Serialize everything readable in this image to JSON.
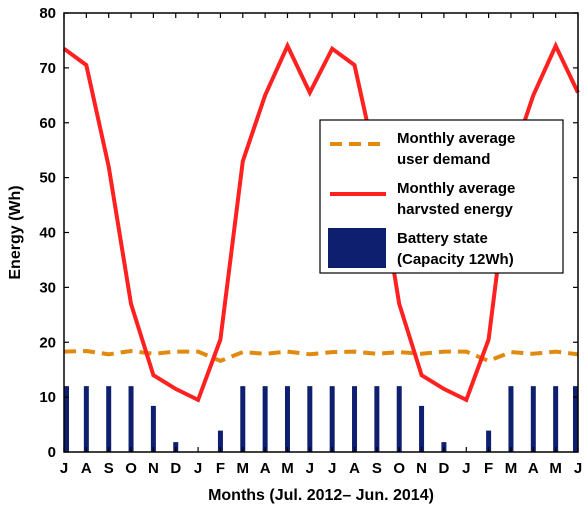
{
  "chart_data": {
    "type": "bar+line",
    "xlabel": "Months (Jul. 2012– Jun. 2014)",
    "ylabel": "Energy (Wh)",
    "ylim": [
      0,
      80
    ],
    "yticks": [
      0,
      10,
      20,
      30,
      40,
      50,
      60,
      70,
      80
    ],
    "categories": [
      "J",
      "A",
      "S",
      "O",
      "N",
      "D",
      "J",
      "F",
      "M",
      "A",
      "M",
      "J",
      "J",
      "A",
      "S",
      "O",
      "N",
      "D",
      "J",
      "F",
      "M",
      "A",
      "M",
      "J"
    ],
    "grid": false,
    "legend_position": "right",
    "series": [
      {
        "name": "Monthly average user demand",
        "kind": "line",
        "style": "dashed",
        "color": "#e08a10",
        "values": [
          18.3,
          18.4,
          17.8,
          18.4,
          17.9,
          18.3,
          18.3,
          16.6,
          18.2,
          17.9,
          18.3,
          17.8,
          18.2,
          18.3,
          17.9,
          18.2,
          17.9,
          18.3,
          18.3,
          16.6,
          18.2,
          17.9,
          18.3,
          17.8
        ]
      },
      {
        "name": "Monthly average harvsted energy",
        "kind": "line",
        "style": "solid",
        "color": "#ff2020",
        "values": [
          73.5,
          70.5,
          52,
          27,
          14,
          11.5,
          9.5,
          20.5,
          53,
          65,
          74,
          65.5,
          73.5,
          70.5,
          52,
          27,
          14,
          11.5,
          9.5,
          20.5,
          53,
          65,
          74,
          65.5
        ]
      },
      {
        "name": "Battery state (Capacity 12Wh)",
        "kind": "bar",
        "color": "#0d1f6e",
        "values": [
          12,
          12,
          12,
          12,
          8.4,
          1.8,
          0,
          3.9,
          12,
          12,
          12,
          12,
          12,
          12,
          12,
          12,
          8.4,
          1.8,
          0,
          3.9,
          12,
          12,
          12,
          12
        ]
      }
    ],
    "legend": [
      {
        "series": 0,
        "lines": [
          "Monthly average",
          "user demand"
        ]
      },
      {
        "series": 1,
        "lines": [
          "Monthly average",
          "harvsted energy"
        ]
      },
      {
        "series": 2,
        "lines": [
          "Battery state",
          "(Capacity 12Wh)"
        ]
      }
    ]
  }
}
